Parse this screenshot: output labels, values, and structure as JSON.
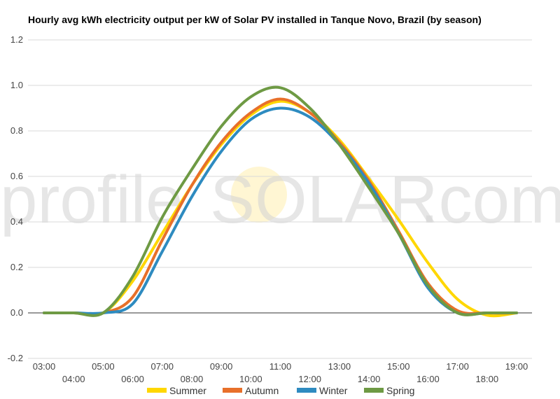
{
  "chart_data": {
    "type": "line",
    "title": "Hourly avg kWh electricity output per kW of Solar PV installed in Tanque Novo, Brazil (by season)",
    "xlabel": "",
    "ylabel": "",
    "ylim": [
      -0.2,
      1.2
    ],
    "yticks": [
      "-0.2",
      "0.0",
      "0.2",
      "0.4",
      "0.6",
      "0.8",
      "1.0",
      "1.2"
    ],
    "yticks_values": [
      -0.2,
      0.0,
      0.2,
      0.4,
      0.6,
      0.8,
      1.0,
      1.2
    ],
    "x": [
      "03:00",
      "04:00",
      "05:00",
      "06:00",
      "07:00",
      "08:00",
      "09:00",
      "10:00",
      "11:00",
      "12:00",
      "13:00",
      "14:00",
      "15:00",
      "16:00",
      "17:00",
      "18:00",
      "19:00"
    ],
    "grid": true,
    "legend": "bottom",
    "watermark": {
      "left": "profile",
      "mid": "SOLAR",
      "right": ".com"
    },
    "series": [
      {
        "name": "Summer",
        "color": "#ffd700",
        "values": [
          0,
          0,
          0,
          0.14,
          0.35,
          0.56,
          0.74,
          0.87,
          0.93,
          0.88,
          0.76,
          0.59,
          0.41,
          0.22,
          0.06,
          -0.01,
          0
        ]
      },
      {
        "name": "Autumn",
        "color": "#e8702a",
        "values": [
          0,
          0,
          0,
          0.07,
          0.32,
          0.56,
          0.75,
          0.88,
          0.94,
          0.88,
          0.75,
          0.58,
          0.36,
          0.13,
          0.01,
          0,
          0
        ]
      },
      {
        "name": "Winter",
        "color": "#2e8bc0",
        "values": [
          0,
          0,
          0,
          0.04,
          0.27,
          0.51,
          0.71,
          0.85,
          0.9,
          0.86,
          0.74,
          0.57,
          0.35,
          0.11,
          0.0,
          0,
          0
        ]
      },
      {
        "name": "Spring",
        "color": "#6e9a44",
        "values": [
          0,
          0,
          0,
          0.16,
          0.42,
          0.63,
          0.82,
          0.95,
          0.99,
          0.9,
          0.74,
          0.55,
          0.35,
          0.12,
          0.0,
          0,
          0
        ]
      }
    ]
  }
}
